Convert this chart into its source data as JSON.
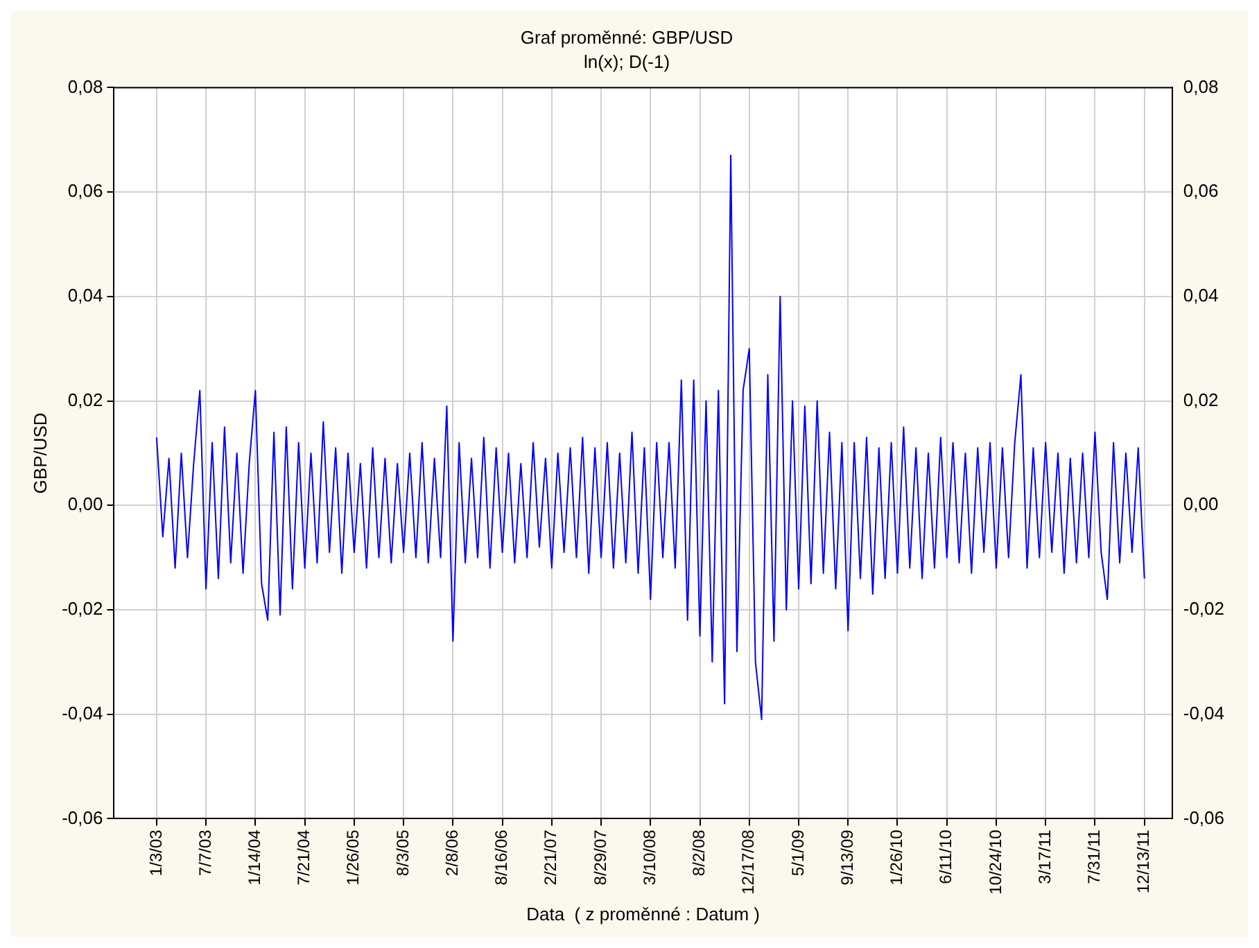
{
  "chart_data": {
    "type": "line",
    "title": "Graf proměnné: GBP/USD",
    "subtitle": "ln(x); D(-1)",
    "xlabel": "Data  ( z proměnné : Datum )",
    "ylabel": "GBP/USD",
    "categories": [
      "1/3/03",
      null,
      null,
      null,
      null,
      null,
      null,
      null,
      "7/7/03",
      null,
      null,
      null,
      null,
      null,
      null,
      null,
      "1/14/04",
      null,
      null,
      null,
      null,
      null,
      null,
      null,
      "7/21/04",
      null,
      null,
      null,
      null,
      null,
      null,
      null,
      "1/26/05",
      null,
      null,
      null,
      null,
      null,
      null,
      null,
      "8/3/05",
      null,
      null,
      null,
      null,
      null,
      null,
      null,
      "2/8/06",
      null,
      null,
      null,
      null,
      null,
      null,
      null,
      "8/16/06",
      null,
      null,
      null,
      null,
      null,
      null,
      null,
      "2/21/07",
      null,
      null,
      null,
      null,
      null,
      null,
      null,
      "8/29/07",
      null,
      null,
      null,
      null,
      null,
      null,
      null,
      "3/10/08",
      null,
      null,
      null,
      null,
      null,
      null,
      null,
      "8/2/08",
      null,
      null,
      null,
      null,
      null,
      null,
      null,
      "12/17/08",
      null,
      null,
      null,
      null,
      null,
      null,
      null,
      "5/1/09",
      null,
      null,
      null,
      null,
      null,
      null,
      null,
      "9/13/09",
      null,
      null,
      null,
      null,
      null,
      null,
      null,
      "1/26/10",
      null,
      null,
      null,
      null,
      null,
      null,
      null,
      "6/11/10",
      null,
      null,
      null,
      null,
      null,
      null,
      null,
      "10/24/10",
      null,
      null,
      null,
      null,
      null,
      null,
      null,
      "3/17/11",
      null,
      null,
      null,
      null,
      null,
      null,
      null,
      "7/31/11",
      null,
      null,
      null,
      null,
      null,
      null,
      null,
      "12/13/11"
    ],
    "series": [
      {
        "color": "#0000ff",
        "values": [
          0.013,
          -0.006,
          0.009,
          -0.012,
          0.01,
          -0.01,
          0.008,
          0.022,
          -0.016,
          0.012,
          -0.014,
          0.015,
          -0.011,
          0.01,
          -0.013,
          0.008,
          0.022,
          -0.015,
          -0.022,
          0.014,
          -0.021,
          0.015,
          -0.016,
          0.012,
          -0.012,
          0.01,
          -0.011,
          0.016,
          -0.009,
          0.011,
          -0.013,
          0.01,
          -0.009,
          0.008,
          -0.012,
          0.011,
          -0.01,
          0.009,
          -0.011,
          0.008,
          -0.009,
          0.01,
          -0.01,
          0.012,
          -0.011,
          0.009,
          -0.01,
          0.019,
          -0.026,
          0.012,
          -0.011,
          0.009,
          -0.01,
          0.013,
          -0.012,
          0.011,
          -0.009,
          0.01,
          -0.011,
          0.008,
          -0.01,
          0.012,
          -0.008,
          0.009,
          -0.012,
          0.01,
          -0.009,
          0.011,
          -0.01,
          0.013,
          -0.013,
          0.011,
          -0.01,
          0.012,
          -0.012,
          0.01,
          -0.011,
          0.014,
          -0.013,
          0.011,
          -0.018,
          0.012,
          -0.01,
          0.012,
          -0.012,
          0.024,
          -0.022,
          0.024,
          -0.025,
          0.02,
          -0.03,
          0.022,
          -0.038,
          0.067,
          -0.028,
          0.022,
          0.03,
          -0.03,
          -0.041,
          0.025,
          -0.026,
          0.04,
          -0.02,
          0.02,
          -0.016,
          0.019,
          -0.015,
          0.02,
          -0.013,
          0.014,
          -0.016,
          0.012,
          -0.024,
          0.012,
          -0.014,
          0.013,
          -0.017,
          0.011,
          -0.014,
          0.012,
          -0.013,
          0.015,
          -0.012,
          0.011,
          -0.014,
          0.01,
          -0.012,
          0.013,
          -0.01,
          0.012,
          -0.011,
          0.01,
          -0.013,
          0.011,
          -0.009,
          0.012,
          -0.012,
          0.011,
          -0.01,
          0.012,
          0.025,
          -0.012,
          0.011,
          -0.01,
          0.012,
          -0.009,
          0.01,
          -0.013,
          0.009,
          -0.011,
          0.01,
          -0.01,
          0.014,
          -0.009,
          -0.018,
          0.012,
          -0.011,
          0.01,
          -0.009,
          0.011,
          -0.014
        ]
      }
    ],
    "ylim": [
      -0.06,
      0.08
    ],
    "yticks": [
      {
        "value": -0.06,
        "label": "-0,06"
      },
      {
        "value": -0.04,
        "label": "-0,04"
      },
      {
        "value": -0.02,
        "label": "-0,02"
      },
      {
        "value": 0,
        "label": "0,00"
      },
      {
        "value": 0.02,
        "label": "0,02"
      },
      {
        "value": 0.04,
        "label": "0,04"
      },
      {
        "value": 0.06,
        "label": "0,06"
      },
      {
        "value": 0.08,
        "label": "0,08"
      }
    ],
    "y2lim": [
      -0.06,
      0.08
    ],
    "y2ticks": [
      {
        "value": -0.06,
        "label": "-0,06"
      },
      {
        "value": -0.04,
        "label": "-0,04"
      },
      {
        "value": -0.02,
        "label": "-0,02"
      },
      {
        "value": 0,
        "label": "0,00"
      },
      {
        "value": 0.02,
        "label": "0,02"
      },
      {
        "value": 0.04,
        "label": "0,04"
      },
      {
        "value": 0.06,
        "label": "0,06"
      },
      {
        "value": 0.08,
        "label": "0,08"
      }
    ],
    "grid": true,
    "marker": "none",
    "line_style": "solid"
  }
}
